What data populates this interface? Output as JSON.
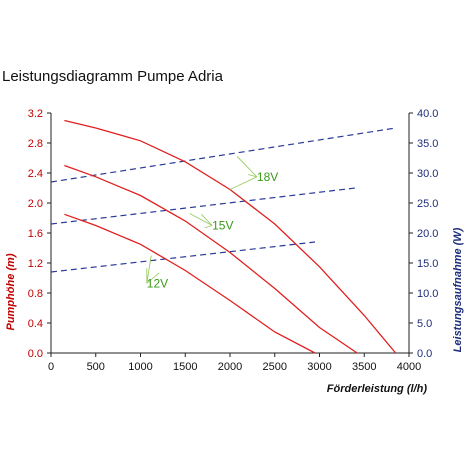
{
  "chart_data": {
    "type": "line",
    "title": "Leistungsdiagramm Pumpe Adria",
    "xlabel": "Förderleistung (l/h)",
    "ylabel_left": "Pumphöhe (m)",
    "ylabel_right": "Leistungsaufnahme (W)",
    "xlim": [
      0,
      4000
    ],
    "ylim_left": [
      0,
      3.2
    ],
    "ylim_right": [
      0,
      40
    ],
    "x_ticks": [
      "0",
      "500",
      "1000",
      "1500",
      "2000",
      "2500",
      "3000",
      "3500",
      "4000"
    ],
    "y_left_ticks": [
      "0.0",
      "0.4",
      "0.8",
      "1.2",
      "1.6",
      "2.0",
      "2.4",
      "2.8",
      "3.2"
    ],
    "y_right_ticks": [
      "0.0",
      "5.0",
      "10.0",
      "15.0",
      "20.0",
      "25.0",
      "30.0",
      "35.0",
      "40.0"
    ],
    "grid": "none",
    "colors": {
      "head": "#e02020",
      "power": "#2a3a9a",
      "label": "#3a9a1a",
      "leader": "#99cc66"
    },
    "head_series": [
      {
        "name": "18V",
        "x": [
          150,
          500,
          1000,
          1500,
          2000,
          2500,
          3000,
          3500,
          3850
        ],
        "y": [
          3.1,
          3.0,
          2.83,
          2.55,
          2.18,
          1.72,
          1.15,
          0.5,
          0.0
        ]
      },
      {
        "name": "15V",
        "x": [
          150,
          500,
          1000,
          1500,
          2000,
          2500,
          3000,
          3420
        ],
        "y": [
          2.5,
          2.35,
          2.1,
          1.76,
          1.34,
          0.86,
          0.34,
          0.0
        ]
      },
      {
        "name": "12V",
        "x": [
          150,
          500,
          1000,
          1500,
          2000,
          2500,
          2950
        ],
        "y": [
          1.85,
          1.7,
          1.45,
          1.1,
          0.7,
          0.28,
          0.0
        ]
      }
    ],
    "power_series": [
      {
        "name": "18V",
        "x": [
          0,
          3850
        ],
        "y": [
          28.5,
          37.5
        ]
      },
      {
        "name": "15V",
        "x": [
          0,
          3400
        ],
        "y": [
          21.5,
          27.5
        ]
      },
      {
        "name": "12V",
        "x": [
          0,
          2950
        ],
        "y": [
          13.5,
          18.5
        ]
      }
    ],
    "annotations": [
      {
        "text": "18V",
        "at": [
          2300,
          2.35
        ]
      },
      {
        "text": "15V",
        "at": [
          1800,
          1.7
        ]
      },
      {
        "text": "12V",
        "at": [
          1070,
          0.93
        ]
      }
    ]
  }
}
